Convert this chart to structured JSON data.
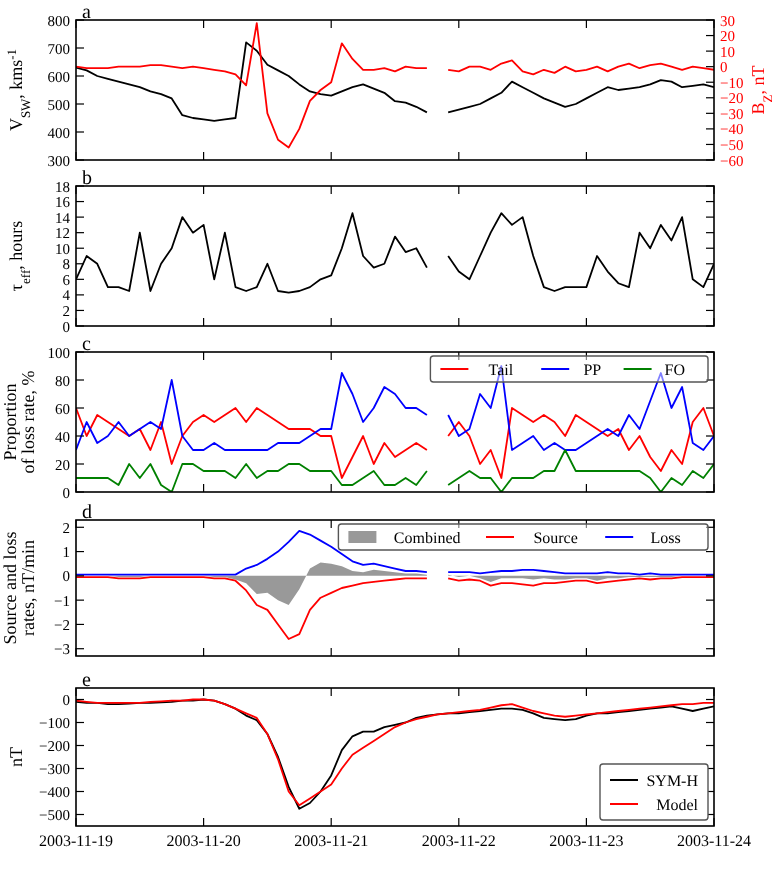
{
  "chart_data": [
    {
      "type": "line",
      "title": "a",
      "ylabel": "V$_{SW}$, kms$^{-1}$",
      "y2label": "B$_{Z}$, nT",
      "xlim": [
        "2003-11-19",
        "2003-11-24"
      ],
      "xticks": [
        "2003-11-19",
        "2003-11-20",
        "2003-11-21",
        "2003-11-22",
        "2003-11-23",
        "2003-11-24"
      ],
      "ylim": [
        300,
        800
      ],
      "yticks": [
        300,
        400,
        500,
        600,
        700,
        800
      ],
      "y2lim": [
        -60,
        30
      ],
      "y2ticks": [
        -60,
        -50,
        -40,
        -30,
        -20,
        -10,
        0,
        10,
        20,
        30
      ],
      "tick_labels": "y",
      "legend": false,
      "x": [
        "2003-11-19T00:00",
        "2003-11-19T02:00",
        "2003-11-19T04:00",
        "2003-11-19T06:00",
        "2003-11-19T08:00",
        "2003-11-19T10:00",
        "2003-11-19T12:00",
        "2003-11-19T14:00",
        "2003-11-19T16:00",
        "2003-11-19T18:00",
        "2003-11-19T20:00",
        "2003-11-19T22:00",
        "2003-11-20T00:00",
        "2003-11-20T02:00",
        "2003-11-20T04:00",
        "2003-11-20T06:00",
        "2003-11-20T08:00",
        "2003-11-20T10:00",
        "2003-11-20T12:00",
        "2003-11-20T14:00",
        "2003-11-20T16:00",
        "2003-11-20T18:00",
        "2003-11-20T20:00",
        "2003-11-20T22:00",
        "2003-11-21T00:00",
        "2003-11-21T02:00",
        "2003-11-21T04:00",
        "2003-11-21T06:00",
        "2003-11-21T08:00",
        "2003-11-21T10:00",
        "2003-11-21T12:00",
        "2003-11-21T14:00",
        "2003-11-21T16:00",
        "2003-11-21T18:00",
        "2003-11-21T20:00",
        "2003-11-21T22:00",
        "2003-11-22T00:00",
        "2003-11-22T02:00",
        "2003-11-22T04:00",
        "2003-11-22T06:00",
        "2003-11-22T08:00",
        "2003-11-22T10:00",
        "2003-11-22T12:00",
        "2003-11-22T14:00",
        "2003-11-22T16:00",
        "2003-11-22T18:00",
        "2003-11-22T20:00",
        "2003-11-22T22:00",
        "2003-11-23T00:00",
        "2003-11-23T02:00",
        "2003-11-23T04:00",
        "2003-11-23T06:00",
        "2003-11-23T08:00",
        "2003-11-23T10:00",
        "2003-11-23T12:00",
        "2003-11-23T14:00",
        "2003-11-23T16:00",
        "2003-11-23T18:00",
        "2003-11-23T20:00",
        "2003-11-23T22:00",
        "2003-11-24T00:00"
      ],
      "series": [
        {
          "color": "#000000",
          "values": [
            630,
            620,
            600,
            590,
            580,
            570,
            560,
            545,
            535,
            520,
            460,
            450,
            445,
            440,
            445,
            450,
            720,
            690,
            640,
            620,
            600,
            570,
            545,
            535,
            530,
            545,
            560,
            570,
            555,
            540,
            510,
            505,
            490,
            470,
            null,
            470,
            480,
            490,
            500,
            520,
            540,
            580,
            560,
            540,
            520,
            505,
            490,
            500,
            520,
            540,
            560,
            550,
            555,
            560,
            570,
            585,
            580,
            560,
            565,
            570,
            560
          ]
        },
        {
          "color": "#ff0000",
          "axis": "y2",
          "values": [
            0,
            -1,
            -1,
            -1,
            0,
            0,
            0,
            1,
            1,
            0,
            -1,
            0,
            -1,
            -2,
            -3,
            -5,
            -12,
            28,
            -30,
            -47,
            -52,
            -40,
            -22,
            -15,
            -10,
            15,
            5,
            -2,
            -2,
            -1,
            -3,
            0,
            -1,
            -1,
            null,
            -2,
            -3,
            0,
            0,
            -2,
            2,
            4,
            -3,
            -5,
            -2,
            -4,
            0,
            -3,
            -2,
            0,
            -3,
            0,
            2,
            -1,
            1,
            2,
            0,
            -2,
            0,
            -1,
            -2
          ]
        }
      ]
    },
    {
      "type": "line",
      "title": "b",
      "ylabel": "τ$_{eff}$, hours",
      "xlim": [
        "2003-11-19",
        "2003-11-24"
      ],
      "xticks": [
        "2003-11-19",
        "2003-11-20",
        "2003-11-21",
        "2003-11-22",
        "2003-11-23",
        "2003-11-24"
      ],
      "ylim": [
        0,
        18
      ],
      "yticks": [
        0,
        2,
        4,
        6,
        8,
        10,
        12,
        14,
        16,
        18
      ],
      "tick_labels": "y",
      "legend": false,
      "x": [
        "2003-11-19T00:00",
        "2003-11-19T02:00",
        "2003-11-19T04:00",
        "2003-11-19T06:00",
        "2003-11-19T08:00",
        "2003-11-19T10:00",
        "2003-11-19T12:00",
        "2003-11-19T14:00",
        "2003-11-19T16:00",
        "2003-11-19T18:00",
        "2003-11-19T20:00",
        "2003-11-19T22:00",
        "2003-11-20T00:00",
        "2003-11-20T02:00",
        "2003-11-20T04:00",
        "2003-11-20T06:00",
        "2003-11-20T08:00",
        "2003-11-20T10:00",
        "2003-11-20T12:00",
        "2003-11-20T14:00",
        "2003-11-20T16:00",
        "2003-11-20T18:00",
        "2003-11-20T20:00",
        "2003-11-20T22:00",
        "2003-11-21T00:00",
        "2003-11-21T02:00",
        "2003-11-21T04:00",
        "2003-11-21T06:00",
        "2003-11-21T08:00",
        "2003-11-21T10:00",
        "2003-11-21T12:00",
        "2003-11-21T14:00",
        "2003-11-21T16:00",
        "2003-11-21T18:00",
        "2003-11-21T20:00",
        "2003-11-21T22:00",
        "2003-11-22T00:00",
        "2003-11-22T02:00",
        "2003-11-22T04:00",
        "2003-11-22T06:00",
        "2003-11-22T08:00",
        "2003-11-22T10:00",
        "2003-11-22T12:00",
        "2003-11-22T14:00",
        "2003-11-22T16:00",
        "2003-11-22T18:00",
        "2003-11-22T20:00",
        "2003-11-22T22:00",
        "2003-11-23T00:00",
        "2003-11-23T02:00",
        "2003-11-23T04:00",
        "2003-11-23T06:00",
        "2003-11-23T08:00",
        "2003-11-23T10:00",
        "2003-11-23T12:00",
        "2003-11-23T14:00",
        "2003-11-23T16:00",
        "2003-11-23T18:00",
        "2003-11-23T20:00",
        "2003-11-23T22:00",
        "2003-11-24T00:00"
      ],
      "series": [
        {
          "color": "#000000",
          "values": [
            6,
            9,
            8,
            5,
            5,
            4.5,
            12,
            4.5,
            8,
            10,
            14,
            12,
            13,
            6,
            12,
            5,
            4.5,
            5,
            8,
            4.5,
            4.3,
            4.5,
            5,
            6,
            6.5,
            10,
            14.5,
            9,
            7.5,
            8,
            11.5,
            9.5,
            10,
            7.5,
            null,
            9,
            7,
            6,
            9,
            12,
            14.5,
            13,
            14,
            9,
            5,
            4.5,
            5,
            5,
            5,
            9,
            7,
            5.5,
            5,
            12,
            10,
            13,
            11,
            14,
            6,
            5,
            8
          ]
        }
      ]
    },
    {
      "type": "line",
      "title": "c",
      "ylabel": "Proportion\nof loss rate, %",
      "xlim": [
        "2003-11-19",
        "2003-11-24"
      ],
      "xticks": [
        "2003-11-19",
        "2003-11-20",
        "2003-11-21",
        "2003-11-22",
        "2003-11-23",
        "2003-11-24"
      ],
      "ylim": [
        0,
        100
      ],
      "yticks": [
        0,
        20,
        40,
        60,
        80,
        100
      ],
      "tick_labels": "y",
      "legend": "top right",
      "x": [
        "2003-11-19T00:00",
        "2003-11-19T02:00",
        "2003-11-19T04:00",
        "2003-11-19T06:00",
        "2003-11-19T08:00",
        "2003-11-19T10:00",
        "2003-11-19T12:00",
        "2003-11-19T14:00",
        "2003-11-19T16:00",
        "2003-11-19T18:00",
        "2003-11-19T20:00",
        "2003-11-19T22:00",
        "2003-11-20T00:00",
        "2003-11-20T02:00",
        "2003-11-20T04:00",
        "2003-11-20T06:00",
        "2003-11-20T08:00",
        "2003-11-20T10:00",
        "2003-11-20T12:00",
        "2003-11-20T14:00",
        "2003-11-20T16:00",
        "2003-11-20T18:00",
        "2003-11-20T20:00",
        "2003-11-20T22:00",
        "2003-11-21T00:00",
        "2003-11-21T02:00",
        "2003-11-21T04:00",
        "2003-11-21T06:00",
        "2003-11-21T08:00",
        "2003-11-21T10:00",
        "2003-11-21T12:00",
        "2003-11-21T14:00",
        "2003-11-21T16:00",
        "2003-11-21T18:00",
        "2003-11-21T20:00",
        "2003-11-21T22:00",
        "2003-11-22T00:00",
        "2003-11-22T02:00",
        "2003-11-22T04:00",
        "2003-11-22T06:00",
        "2003-11-22T08:00",
        "2003-11-22T10:00",
        "2003-11-22T12:00",
        "2003-11-22T14:00",
        "2003-11-22T16:00",
        "2003-11-22T18:00",
        "2003-11-22T20:00",
        "2003-11-22T22:00",
        "2003-11-23T00:00",
        "2003-11-23T02:00",
        "2003-11-23T04:00",
        "2003-11-23T06:00",
        "2003-11-23T08:00",
        "2003-11-23T10:00",
        "2003-11-23T12:00",
        "2003-11-23T14:00",
        "2003-11-23T16:00",
        "2003-11-23T18:00",
        "2003-11-23T20:00",
        "2003-11-23T22:00",
        "2003-11-24T00:00"
      ],
      "series": [
        {
          "name": "Tail",
          "color": "#ff0000",
          "values": [
            60,
            40,
            55,
            50,
            45,
            40,
            45,
            30,
            50,
            20,
            40,
            50,
            55,
            50,
            55,
            60,
            50,
            60,
            55,
            50,
            45,
            45,
            45,
            40,
            40,
            10,
            25,
            40,
            20,
            35,
            25,
            30,
            35,
            30,
            null,
            40,
            50,
            40,
            20,
            30,
            10,
            60,
            55,
            50,
            55,
            50,
            40,
            55,
            50,
            45,
            40,
            45,
            30,
            40,
            25,
            15,
            30,
            20,
            50,
            60,
            40
          ]
        },
        {
          "name": "PP",
          "color": "#0000ff",
          "values": [
            30,
            50,
            35,
            40,
            50,
            40,
            45,
            50,
            45,
            80,
            40,
            30,
            30,
            35,
            30,
            30,
            30,
            30,
            30,
            35,
            35,
            35,
            40,
            45,
            45,
            85,
            70,
            50,
            60,
            75,
            70,
            60,
            60,
            55,
            null,
            55,
            40,
            45,
            70,
            60,
            90,
            30,
            35,
            40,
            30,
            35,
            30,
            30,
            35,
            40,
            45,
            40,
            55,
            45,
            65,
            85,
            60,
            75,
            35,
            30,
            40
          ]
        },
        {
          "name": "FO",
          "color": "#008000",
          "values": [
            10,
            10,
            10,
            10,
            5,
            20,
            10,
            20,
            5,
            0,
            20,
            20,
            15,
            15,
            15,
            10,
            20,
            10,
            15,
            15,
            20,
            20,
            15,
            15,
            15,
            5,
            5,
            10,
            15,
            5,
            5,
            10,
            5,
            15,
            null,
            5,
            10,
            15,
            10,
            10,
            0,
            10,
            10,
            10,
            15,
            15,
            30,
            15,
            15,
            15,
            15,
            15,
            15,
            15,
            10,
            0,
            10,
            5,
            15,
            10,
            20
          ]
        }
      ]
    },
    {
      "type": "line",
      "title": "d",
      "ylabel": "Source and loss\nrates, nT/min",
      "xlim": [
        "2003-11-19",
        "2003-11-24"
      ],
      "xticks": [
        "2003-11-19",
        "2003-11-20",
        "2003-11-21",
        "2003-11-22",
        "2003-11-23",
        "2003-11-24"
      ],
      "ylim": [
        -3.3,
        2.3
      ],
      "yticks": [
        -3,
        -2,
        -1,
        0,
        1,
        2
      ],
      "tick_labels": "y",
      "legend": "top right",
      "x": [
        "2003-11-19T00:00",
        "2003-11-19T02:00",
        "2003-11-19T04:00",
        "2003-11-19T06:00",
        "2003-11-19T08:00",
        "2003-11-19T10:00",
        "2003-11-19T12:00",
        "2003-11-19T14:00",
        "2003-11-19T16:00",
        "2003-11-19T18:00",
        "2003-11-19T20:00",
        "2003-11-19T22:00",
        "2003-11-20T00:00",
        "2003-11-20T02:00",
        "2003-11-20T04:00",
        "2003-11-20T06:00",
        "2003-11-20T08:00",
        "2003-11-20T10:00",
        "2003-11-20T12:00",
        "2003-11-20T14:00",
        "2003-11-20T16:00",
        "2003-11-20T18:00",
        "2003-11-20T20:00",
        "2003-11-20T22:00",
        "2003-11-21T00:00",
        "2003-11-21T02:00",
        "2003-11-21T04:00",
        "2003-11-21T06:00",
        "2003-11-21T08:00",
        "2003-11-21T10:00",
        "2003-11-21T12:00",
        "2003-11-21T14:00",
        "2003-11-21T16:00",
        "2003-11-21T18:00",
        "2003-11-21T20:00",
        "2003-11-21T22:00",
        "2003-11-22T00:00",
        "2003-11-22T02:00",
        "2003-11-22T04:00",
        "2003-11-22T06:00",
        "2003-11-22T08:00",
        "2003-11-22T10:00",
        "2003-11-22T12:00",
        "2003-11-22T14:00",
        "2003-11-22T16:00",
        "2003-11-22T18:00",
        "2003-11-22T20:00",
        "2003-11-22T22:00",
        "2003-11-23T00:00",
        "2003-11-23T02:00",
        "2003-11-23T04:00",
        "2003-11-23T06:00",
        "2003-11-23T08:00",
        "2003-11-23T10:00",
        "2003-11-23T12:00",
        "2003-11-23T14:00",
        "2003-11-23T16:00",
        "2003-11-23T18:00",
        "2003-11-23T20:00",
        "2003-11-23T22:00",
        "2003-11-24T00:00"
      ],
      "series": [
        {
          "name": "Combined",
          "type": "area",
          "color": "#999999",
          "values": [
            0,
            0,
            0,
            0,
            -0.05,
            -0.05,
            -0.05,
            0,
            0,
            0,
            0,
            0,
            0,
            -0.05,
            -0.05,
            -0.15,
            -0.3,
            -0.75,
            -0.7,
            -1.0,
            -1.2,
            -0.55,
            0.3,
            0.55,
            0.5,
            0.4,
            0.2,
            0.15,
            0.25,
            0.2,
            0.15,
            0.1,
            0.1,
            0.05,
            null,
            0.05,
            -0.05,
            0,
            -0.1,
            -0.25,
            -0.1,
            -0.1,
            -0.1,
            -0.15,
            -0.1,
            -0.15,
            -0.15,
            -0.1,
            -0.1,
            -0.2,
            -0.1,
            -0.1,
            -0.05,
            -0.05,
            -0.05,
            -0.05,
            -0.05,
            0,
            0,
            0,
            0
          ]
        },
        {
          "name": "Source",
          "color": "#ff0000",
          "values": [
            -0.05,
            -0.05,
            -0.05,
            -0.05,
            -0.1,
            -0.1,
            -0.1,
            -0.05,
            -0.05,
            -0.05,
            -0.05,
            -0.05,
            -0.05,
            -0.1,
            -0.1,
            -0.2,
            -0.6,
            -1.2,
            -1.4,
            -2.0,
            -2.6,
            -2.4,
            -1.4,
            -0.9,
            -0.7,
            -0.5,
            -0.4,
            -0.3,
            -0.25,
            -0.2,
            -0.15,
            -0.1,
            -0.1,
            -0.1,
            null,
            -0.1,
            -0.2,
            -0.15,
            -0.2,
            -0.4,
            -0.3,
            -0.3,
            -0.35,
            -0.4,
            -0.3,
            -0.3,
            -0.25,
            -0.2,
            -0.2,
            -0.3,
            -0.25,
            -0.2,
            -0.15,
            -0.1,
            -0.15,
            -0.1,
            -0.1,
            -0.05,
            -0.05,
            -0.05,
            -0.05
          ]
        },
        {
          "name": "Loss",
          "color": "#0000ff",
          "values": [
            0.05,
            0.05,
            0.05,
            0.05,
            0.05,
            0.05,
            0.05,
            0.05,
            0.05,
            0.05,
            0.05,
            0.05,
            0.05,
            0.05,
            0.05,
            0.05,
            0.3,
            0.45,
            0.7,
            1.0,
            1.4,
            1.85,
            1.7,
            1.45,
            1.2,
            0.9,
            0.6,
            0.45,
            0.5,
            0.4,
            0.3,
            0.2,
            0.2,
            0.15,
            null,
            0.15,
            0.15,
            0.15,
            0.1,
            0.15,
            0.2,
            0.2,
            0.25,
            0.25,
            0.2,
            0.15,
            0.1,
            0.1,
            0.1,
            0.1,
            0.15,
            0.1,
            0.1,
            0.05,
            0.1,
            0.05,
            0.05,
            0.05,
            0.05,
            0.05,
            0.05
          ]
        }
      ]
    },
    {
      "type": "line",
      "title": "e",
      "ylabel": "nT",
      "xlim": [
        "2003-11-19",
        "2003-11-24"
      ],
      "xticks": [
        "2003-11-19",
        "2003-11-20",
        "2003-11-21",
        "2003-11-22",
        "2003-11-23",
        "2003-11-24"
      ],
      "ylim": [
        -550,
        50
      ],
      "yticks": [
        -500,
        -400,
        -300,
        -200,
        -100,
        0
      ],
      "legend": "bottom right",
      "x": [
        "2003-11-19T00:00",
        "2003-11-19T02:00",
        "2003-11-19T04:00",
        "2003-11-19T06:00",
        "2003-11-19T08:00",
        "2003-11-19T10:00",
        "2003-11-19T12:00",
        "2003-11-19T14:00",
        "2003-11-19T16:00",
        "2003-11-19T18:00",
        "2003-11-19T20:00",
        "2003-11-19T22:00",
        "2003-11-20T00:00",
        "2003-11-20T02:00",
        "2003-11-20T04:00",
        "2003-11-20T06:00",
        "2003-11-20T08:00",
        "2003-11-20T10:00",
        "2003-11-20T12:00",
        "2003-11-20T14:00",
        "2003-11-20T16:00",
        "2003-11-20T18:00",
        "2003-11-20T20:00",
        "2003-11-20T22:00",
        "2003-11-21T00:00",
        "2003-11-21T02:00",
        "2003-11-21T04:00",
        "2003-11-21T06:00",
        "2003-11-21T08:00",
        "2003-11-21T10:00",
        "2003-11-21T12:00",
        "2003-11-21T14:00",
        "2003-11-21T16:00",
        "2003-11-21T18:00",
        "2003-11-21T20:00",
        "2003-11-21T22:00",
        "2003-11-22T00:00",
        "2003-11-22T02:00",
        "2003-11-22T04:00",
        "2003-11-22T06:00",
        "2003-11-22T08:00",
        "2003-11-22T10:00",
        "2003-11-22T12:00",
        "2003-11-22T14:00",
        "2003-11-22T16:00",
        "2003-11-22T18:00",
        "2003-11-22T20:00",
        "2003-11-22T22:00",
        "2003-11-23T00:00",
        "2003-11-23T02:00",
        "2003-11-23T04:00",
        "2003-11-23T06:00",
        "2003-11-23T08:00",
        "2003-11-23T10:00",
        "2003-11-23T12:00",
        "2003-11-23T14:00",
        "2003-11-23T16:00",
        "2003-11-23T18:00",
        "2003-11-23T20:00",
        "2003-11-23T22:00",
        "2003-11-24T00:00"
      ],
      "series": [
        {
          "name": "SYM-H",
          "color": "#000000",
          "values": [
            -10,
            -15,
            -15,
            -20,
            -20,
            -18,
            -15,
            -15,
            -12,
            -10,
            -5,
            -5,
            0,
            -5,
            -20,
            -40,
            -70,
            -90,
            -150,
            -250,
            -380,
            -475,
            -450,
            -400,
            -330,
            -220,
            -160,
            -140,
            -140,
            -120,
            -110,
            -100,
            -80,
            -70,
            -65,
            -60,
            -60,
            -55,
            -50,
            -45,
            -40,
            -40,
            -45,
            -60,
            -80,
            -85,
            -90,
            -85,
            -70,
            -60,
            -60,
            -55,
            -50,
            -45,
            -40,
            -35,
            -30,
            -40,
            -50,
            -40,
            -30
          ]
        },
        {
          "name": "Model",
          "color": "#ff0000",
          "values": [
            -5,
            -10,
            -15,
            -15,
            -15,
            -15,
            -15,
            -10,
            -8,
            -5,
            -5,
            0,
            0,
            -5,
            -20,
            -40,
            -60,
            -80,
            -150,
            -260,
            -400,
            -460,
            -430,
            -400,
            -370,
            -300,
            -240,
            -210,
            -180,
            -150,
            -120,
            -100,
            -85,
            -75,
            -65,
            -60,
            -55,
            -50,
            -45,
            -35,
            -25,
            -20,
            -35,
            -50,
            -60,
            -70,
            -75,
            -70,
            -65,
            -60,
            -55,
            -50,
            -45,
            -40,
            -35,
            -30,
            -25,
            -20,
            -20,
            -15,
            -15
          ]
        }
      ]
    }
  ]
}
